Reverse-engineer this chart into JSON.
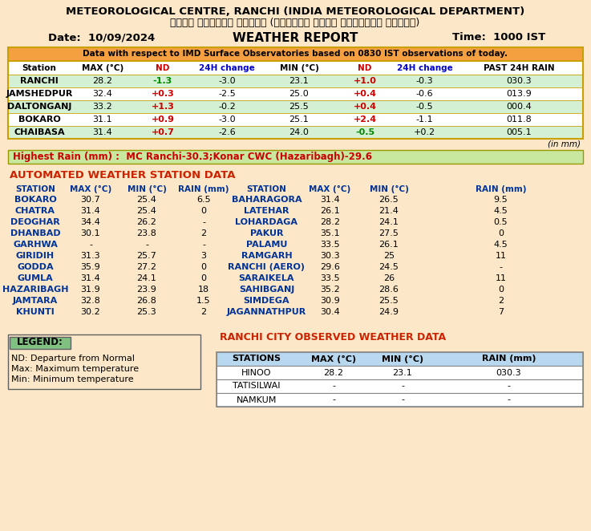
{
  "bg_color": "#fce8c8",
  "title1": "METEOROLOGICAL CENTRE, RANCHI (INDIA METEOROLOGICAL DEPARTMENT)",
  "title2": "मौसम केंद्र रांची (भारतीय मौसम विज्ञान विभाग)",
  "date_label": "Date:  10/09/2024",
  "report_label": "WEATHER REPORT",
  "time_label": "Time:  1000 IST",
  "obs_note": "Data with respect to IMD Surface Observatories based on 0830 IST observations of today.",
  "obs_header": [
    "Station",
    "MAX (°C)",
    "ND",
    "24H change",
    "MIN (°C)",
    "ND",
    "24H change",
    "PAST 24H RAIN"
  ],
  "obs_data": [
    [
      "RANCHI",
      "28.2",
      "-1.3",
      "-3.0",
      "23.1",
      "+1.0",
      "-0.3",
      "030.3"
    ],
    [
      "JAMSHEDPUR",
      "32.4",
      "+0.3",
      "-2.5",
      "25.0",
      "+0.4",
      "-0.6",
      "013.9"
    ],
    [
      "DALTONGANJ",
      "33.2",
      "+1.3",
      "-0.2",
      "25.5",
      "+0.4",
      "-0.5",
      "000.4"
    ],
    [
      "BOKARO",
      "31.1",
      "+0.9",
      "-3.0",
      "25.1",
      "+2.4",
      "-1.1",
      "011.8"
    ],
    [
      "CHAIBASA",
      "31.4",
      "+0.7",
      "-2.6",
      "24.0",
      "-0.5",
      "+0.2",
      "005.1"
    ]
  ],
  "in_mm": "(in mm)",
  "highest_rain": "Highest Rain (mm) :  MC Ranchi-30.3;Konar CWC (Hazaribagh)-29.6",
  "aws_title": "AUTOMATED WEATHER STATION DATA",
  "aws_header": [
    "STATION",
    "MAX (°C)",
    "MIN (°C)",
    "RAIN (mm)",
    "STATION",
    "MAX (°C)",
    "MIN (°C)",
    "RAIN (mm)"
  ],
  "aws_data": [
    [
      "BOKARO",
      "30.7",
      "25.4",
      "6.5",
      "BAHARAGORA",
      "31.4",
      "26.5",
      "9.5"
    ],
    [
      "CHATRA",
      "31.4",
      "25.4",
      "0",
      "LATEHAR",
      "26.1",
      "21.4",
      "4.5"
    ],
    [
      "DEOGHAR",
      "34.4",
      "26.2",
      "-",
      "LOHARDAGA",
      "28.2",
      "24.1",
      "0.5"
    ],
    [
      "DHANBAD",
      "30.1",
      "23.8",
      "2",
      "PAKUR",
      "35.1",
      "27.5",
      "0"
    ],
    [
      "GARHWA",
      "-",
      "-",
      "-",
      "PALAMU",
      "33.5",
      "26.1",
      "4.5"
    ],
    [
      "GIRIDIH",
      "31.3",
      "25.7",
      "3",
      "RAMGARH",
      "30.3",
      "25",
      "11"
    ],
    [
      "GODDA",
      "35.9",
      "27.2",
      "0",
      "RANCHI (AERO)",
      "29.6",
      "24.5",
      "-"
    ],
    [
      "GUMLA",
      "31.4",
      "24.1",
      "0",
      "SARAIKELA",
      "33.5",
      "26",
      "11"
    ],
    [
      "HAZARIBAGH",
      "31.9",
      "23.9",
      "18",
      "SAHIBGANJ",
      "35.2",
      "28.6",
      "0"
    ],
    [
      "JAMTARA",
      "32.8",
      "26.8",
      "1.5",
      "SIMDEGA",
      "30.9",
      "25.5",
      "2"
    ],
    [
      "KHUNTI",
      "30.2",
      "25.3",
      "2",
      "JAGANNATHPUR",
      "30.4",
      "24.9",
      "7"
    ]
  ],
  "legend_title": "LEGEND:",
  "legend_lines": [
    "ND: Departure from Normal",
    "Max: Maximum temperature",
    "Min: Minimum temperature"
  ],
  "ranchi_title": "RANCHI CITY OBSERVED WEATHER DATA",
  "ranchi_header": [
    "STATIONS",
    "MAX (°C)",
    "MIN (°C)",
    "RAIN (mm)"
  ],
  "ranchi_data": [
    [
      "HINOO",
      "28.2",
      "23.1",
      "030.3"
    ],
    [
      "TATISILWAI",
      "-",
      "-",
      "-"
    ],
    [
      "NAMKUM",
      "-",
      "-",
      "-"
    ]
  ],
  "orange_bg": "#f5a040",
  "green_banner_bg": "#c8e8a0",
  "table_border_color": "#c8a000",
  "nd_red": "#cc0000",
  "nd_green": "#008800",
  "aws_title_color": "#cc2200",
  "aws_station_color": "#003399",
  "legend_box_bg": "#80c080",
  "legend_border": "#606060",
  "ranchi_title_color": "#cc2200",
  "ranchi_header_bg": "#b8d8f0",
  "ranchi_border": "#888888",
  "obs_row_colors": [
    "#d4f0d4",
    "#ffffff",
    "#d4f0d4",
    "#ffffff",
    "#d4f0d4"
  ]
}
